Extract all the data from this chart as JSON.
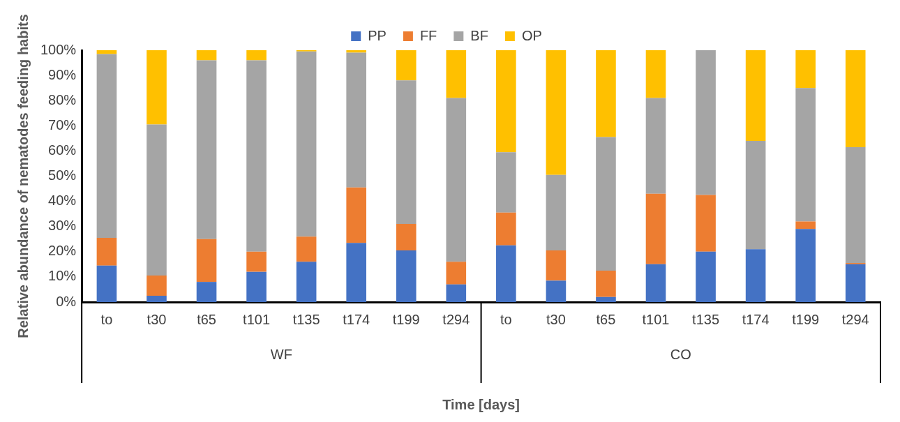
{
  "chart_data": {
    "type": "bar",
    "stacked": true,
    "xlabel": "Time [days]",
    "ylabel": "Relative abundance of nematodes feeding habits",
    "categories": [
      "to",
      "t30",
      "t65",
      "t101",
      "t135",
      "t174",
      "t199",
      "t294",
      "to",
      "t30",
      "t65",
      "t101",
      "t135",
      "t174",
      "t199",
      "t294"
    ],
    "series": [
      {
        "name": "PP",
        "color": "#4472c4",
        "values": [
          14.5,
          2.5,
          8,
          12,
          16,
          23.5,
          20.5,
          7,
          22.5,
          8.5,
          2,
          15,
          20,
          21,
          29,
          15
        ]
      },
      {
        "name": "FF",
        "color": "#ed7d31",
        "values": [
          11,
          8,
          17,
          8,
          10,
          22,
          10.5,
          9,
          13,
          12,
          10.5,
          28,
          22.5,
          0,
          3,
          0.5
        ]
      },
      {
        "name": "BF",
        "color": "#a5a5a5",
        "values": [
          73,
          60,
          71,
          76,
          73.5,
          53.5,
          57,
          65,
          24,
          30,
          53,
          38,
          57.5,
          43,
          53,
          46
        ]
      },
      {
        "name": "OP",
        "color": "#ffc000",
        "values": [
          1.5,
          29.5,
          4,
          4,
          0.5,
          1,
          12,
          19,
          40.5,
          49.5,
          34.5,
          19,
          0,
          36,
          15,
          38.5
        ]
      }
    ],
    "ylim": [
      0,
      100
    ],
    "yticks": [
      {
        "value": 0,
        "label": "0%"
      },
      {
        "value": 10,
        "label": "10%"
      },
      {
        "value": 20,
        "label": "20%"
      },
      {
        "value": 30,
        "label": "30%"
      },
      {
        "value": 40,
        "label": "40%"
      },
      {
        "value": 50,
        "label": "50%"
      },
      {
        "value": 60,
        "label": "60%"
      },
      {
        "value": 70,
        "label": "70%"
      },
      {
        "value": 80,
        "label": "80%"
      },
      {
        "value": 90,
        "label": "90%"
      },
      {
        "value": 100,
        "label": "100%"
      }
    ],
    "annotations": [
      "WF",
      "CO"
    ],
    "grid": false,
    "legend": "top"
  }
}
